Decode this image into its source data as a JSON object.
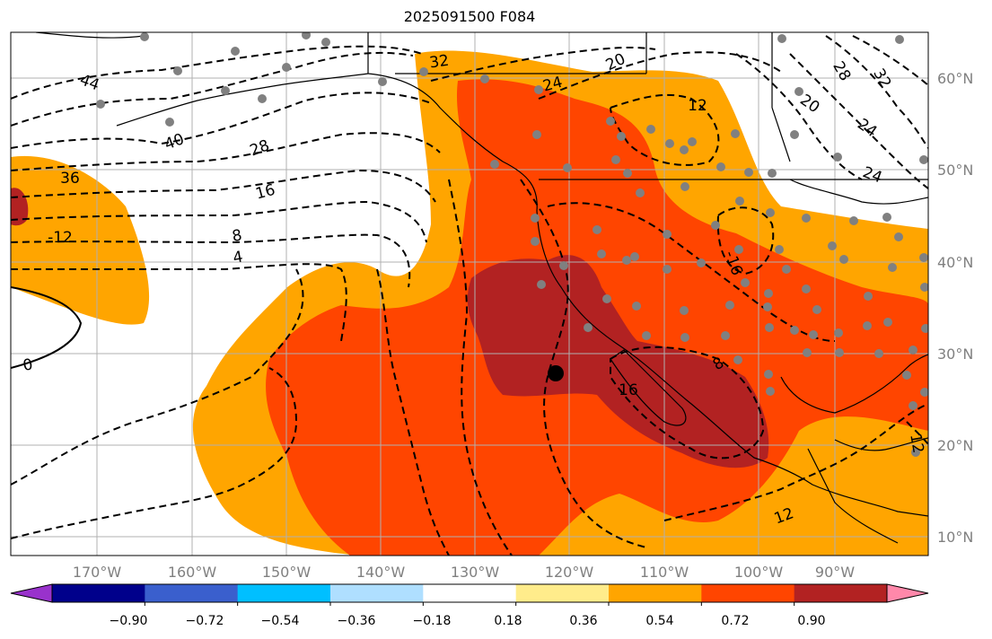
{
  "title": "2025091500 F084",
  "lat_labels": [
    "60°N",
    "50°N",
    "40°N",
    "30°N",
    "20°N",
    "10°N"
  ],
  "lon_labels": [
    "170°W",
    "160°W",
    "150°W",
    "140°W",
    "130°W",
    "120°W",
    "110°W",
    "100°W",
    "90°W"
  ],
  "contour_labels": [
    "44",
    "40",
    "36",
    "32",
    "28",
    "24",
    "20",
    "16",
    "12",
    "8",
    "4",
    "0",
    "-12",
    "-16",
    "12",
    "8",
    "28",
    "32",
    "24",
    "20",
    "24",
    "12",
    "16"
  ],
  "colorbar": {
    "ticks": [
      "−0.90",
      "−0.72",
      "−0.54",
      "−0.36",
      "−0.18",
      "0.18",
      "0.36",
      "0.54",
      "0.72",
      "0.90"
    ],
    "colors": [
      "#9932cc",
      "#00008b",
      "#3a5fcd",
      "#00bfff",
      "#afdfff",
      "#ffffff",
      "#ffec8b",
      "#ffa500",
      "#ff4500",
      "#b22222",
      "#ff88aa"
    ]
  },
  "colors": {
    "grid": "#b0b0b0",
    "level_036": "#ffa500",
    "level_054": "#ff4500",
    "level_072": "#b22222",
    "station": "#808080",
    "station_highlight": "#000000"
  }
}
